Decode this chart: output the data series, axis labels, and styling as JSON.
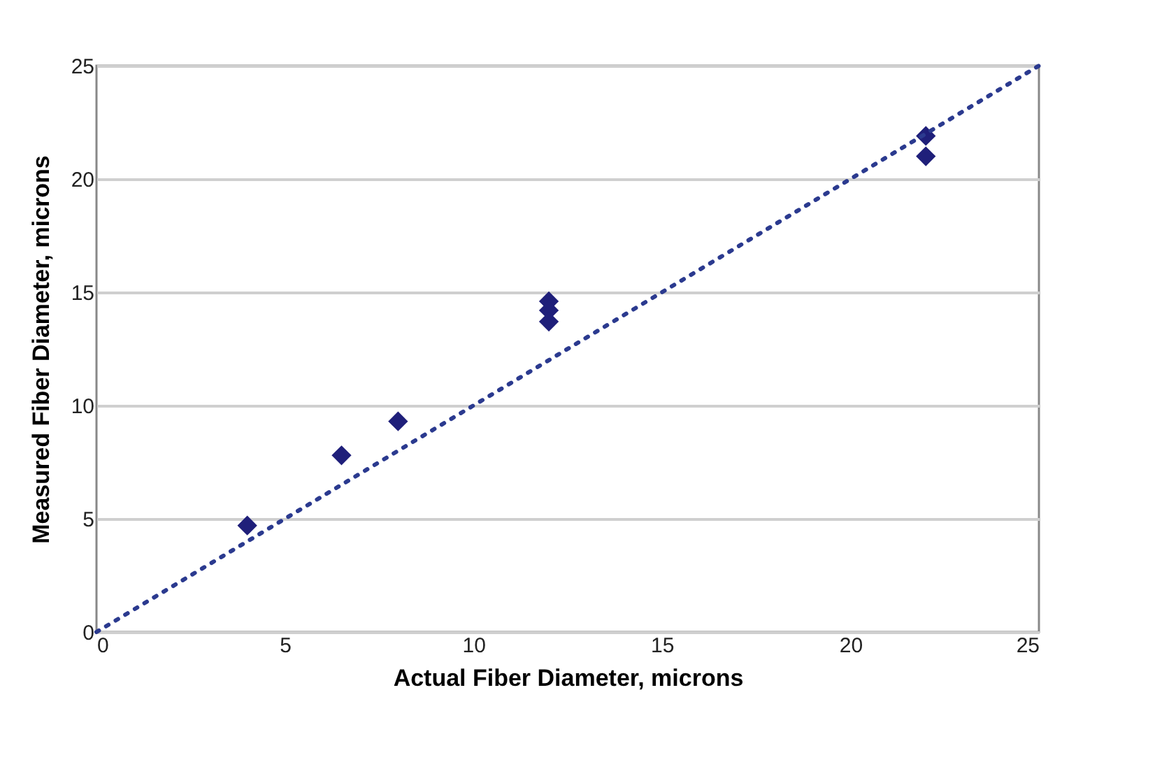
{
  "chart_data": {
    "type": "scatter",
    "xlabel": "Actual Fiber Diameter, microns",
    "ylabel": "Measured Fiber Diameter, microns",
    "series": [
      {
        "color": "#1f1f7a",
        "marker": "diamond",
        "x": [
          4,
          6.5,
          8,
          12,
          12,
          12,
          22,
          22
        ],
        "values": [
          4.7,
          7.8,
          9.3,
          14.6,
          14.2,
          13.7,
          21.9,
          21
        ]
      },
      {
        "type": "line",
        "color": "#2b3a8f",
        "line_style": "dotted",
        "marker": "none",
        "x": [
          0,
          25
        ],
        "values": [
          0,
          25
        ]
      }
    ],
    "xlim": [
      0,
      25
    ],
    "ylim": [
      0,
      25
    ],
    "xticks": [
      0,
      5,
      10,
      15,
      20,
      25
    ],
    "yticks": [
      0,
      5,
      10,
      15,
      20,
      25
    ],
    "grid": "y"
  }
}
